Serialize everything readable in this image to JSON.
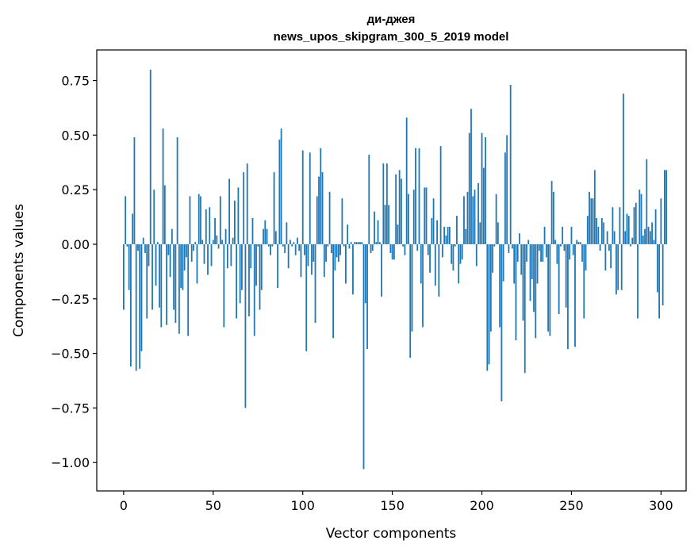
{
  "chart_data": {
    "type": "bar",
    "title_line1": "ди-джея",
    "title_line2": "news_upos_skipgram_300_5_2019 model",
    "xlabel": "Vector components",
    "ylabel": "Components values",
    "xlim": [
      -15,
      314
    ],
    "ylim": [
      -1.13,
      0.89
    ],
    "xticks": [
      0,
      50,
      100,
      150,
      200,
      250,
      300
    ],
    "xtick_labels": [
      "0",
      "50",
      "100",
      "150",
      "200",
      "250",
      "300"
    ],
    "yticks": [
      0.75,
      0.5,
      0.25,
      0.0,
      -0.25,
      -0.5,
      -0.75,
      -1.0
    ],
    "ytick_labels": [
      "0.75",
      "0.50",
      "0.25",
      "0.00",
      "−0.25",
      "−0.50",
      "−0.75",
      "−1.00"
    ],
    "bar_color": "#1f77b4",
    "grid": false,
    "values": [
      -0.3,
      0.22,
      -0.01,
      -0.21,
      -0.56,
      0.14,
      0.49,
      -0.58,
      -0.03,
      -0.57,
      -0.49,
      0.03,
      -0.04,
      -0.34,
      -0.1,
      0.8,
      -0.3,
      0.25,
      -0.19,
      0.01,
      -0.29,
      -0.38,
      0.53,
      0.27,
      -0.37,
      -0.05,
      -0.15,
      0.07,
      -0.3,
      -0.36,
      0.49,
      -0.41,
      -0.2,
      -0.21,
      -0.12,
      -0.06,
      -0.42,
      0.22,
      -0.08,
      -0.03,
      0.01,
      -0.18,
      0.23,
      0.22,
      0.02,
      -0.09,
      0.16,
      -0.14,
      0.17,
      -0.1,
      0.02,
      0.12,
      0.04,
      -0.02,
      0.22,
      0.02,
      -0.38,
      0.07,
      -0.11,
      0.3,
      -0.1,
      0.03,
      0.2,
      -0.34,
      0.26,
      -0.27,
      -0.21,
      0.33,
      -0.75,
      0.37,
      -0.33,
      -0.11,
      0.12,
      -0.42,
      -0.19,
      -0.01,
      -0.3,
      -0.21,
      0.07,
      0.11,
      0.07,
      -0.01,
      -0.05,
      -0.01,
      0.33,
      0.06,
      -0.2,
      0.48,
      0.53,
      -0.01,
      -0.04,
      0.1,
      -0.11,
      0.02,
      -0.01,
      0.01,
      -0.05,
      0.03,
      -0.03,
      -0.15,
      0.43,
      -0.05,
      -0.49,
      -0.1,
      0.42,
      -0.14,
      -0.08,
      -0.36,
      0.22,
      0.31,
      0.44,
      0.33,
      -0.15,
      -0.08,
      -0.01,
      0.24,
      -0.04,
      -0.43,
      -0.12,
      -0.06,
      -0.08,
      -0.05,
      0.21,
      -0.01,
      -0.18,
      0.09,
      -0.02,
      0.01,
      -0.23,
      0.01,
      0.01,
      0.01,
      0.01,
      0.01,
      -1.03,
      -0.27,
      -0.48,
      0.41,
      -0.04,
      -0.03,
      0.15,
      0.01,
      0.11,
      0.01,
      -0.24,
      0.37,
      0.18,
      0.37,
      0.18,
      -0.04,
      -0.07,
      -0.07,
      0.32,
      0.09,
      0.34,
      0.3,
      -0.01,
      -0.05,
      0.58,
      0.23,
      -0.52,
      -0.4,
      0.25,
      0.44,
      -0.03,
      0.44,
      -0.18,
      -0.38,
      0.26,
      0.26,
      -0.05,
      -0.13,
      0.12,
      0.21,
      -0.19,
      0.11,
      -0.24,
      0.45,
      -0.06,
      0.08,
      0.04,
      0.08,
      0.08,
      -0.09,
      -0.12,
      -0.01,
      0.13,
      -0.18,
      -0.09,
      -0.07,
      0.22,
      0.07,
      0.24,
      0.51,
      0.62,
      0.22,
      0.25,
      -0.1,
      0.28,
      0.1,
      0.51,
      0.35,
      0.49,
      -0.58,
      -0.55,
      -0.4,
      -0.13,
      -0.01,
      0.23,
      0.1,
      -0.38,
      -0.72,
      -0.17,
      0.42,
      0.5,
      -0.04,
      0.73,
      -0.02,
      -0.18,
      -0.44,
      -0.08,
      0.05,
      -0.14,
      -0.35,
      -0.59,
      -0.08,
      0.02,
      -0.26,
      -0.16,
      -0.31,
      -0.43,
      -0.18,
      -0.03,
      -0.08,
      -0.08,
      0.08,
      -0.06,
      -0.4,
      -0.42,
      0.29,
      0.24,
      0.02,
      -0.09,
      -0.32,
      -0.01,
      0.08,
      -0.03,
      -0.29,
      -0.48,
      -0.07,
      0.08,
      -0.05,
      -0.47,
      0.02,
      0.01,
      0.01,
      -0.08,
      -0.34,
      -0.12,
      0.13,
      0.24,
      0.21,
      0.21,
      0.34,
      0.12,
      0.08,
      -0.03,
      0.12,
      0.1,
      -0.12,
      0.06,
      -0.03,
      -0.11,
      0.17,
      0.06,
      -0.23,
      -0.21,
      0.17,
      -0.21,
      0.69,
      0.06,
      0.14,
      0.13,
      -0.01,
      0.03,
      0.17,
      0.19,
      -0.34,
      0.25,
      0.23,
      0.04,
      0.07,
      0.39,
      0.08,
      0.06,
      0.1,
      0.02,
      0.16,
      -0.22,
      -0.34,
      0.21,
      -0.28,
      0.34,
      0.34
    ]
  }
}
